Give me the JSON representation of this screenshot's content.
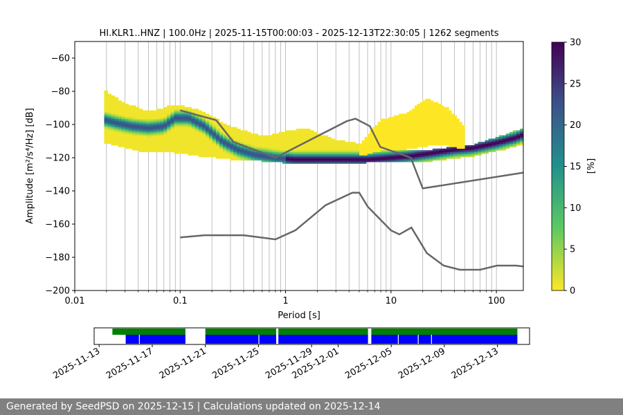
{
  "chart_data": {
    "type": "heatmap",
    "title": "HI.KLR1..HNZ | 100.0Hz | 2025-11-15T00:00:03 - 2025-12-13T22:30:05 | 1262 segments",
    "xlabel": "Period [s]",
    "ylabel": "Amplitude [m²/s⁴/Hz] [dB]",
    "x_scale": "log",
    "xlim": [
      0.01,
      180
    ],
    "ylim": [
      -200,
      -50
    ],
    "x_ticks": [
      {
        "value": 0.01,
        "label": "0.01"
      },
      {
        "value": 0.1,
        "label": "0.1"
      },
      {
        "value": 1,
        "label": "1"
      },
      {
        "value": 10,
        "label": "10"
      },
      {
        "value": 100,
        "label": "100"
      }
    ],
    "y_ticks": [
      {
        "value": -60,
        "label": "−60"
      },
      {
        "value": -80,
        "label": "−80"
      },
      {
        "value": -100,
        "label": "−100"
      },
      {
        "value": -120,
        "label": "−120"
      },
      {
        "value": -140,
        "label": "−140"
      },
      {
        "value": -160,
        "label": "−160"
      },
      {
        "value": -180,
        "label": "−180"
      },
      {
        "value": -200,
        "label": "−200"
      }
    ],
    "grid": "vertical",
    "colorbar": {
      "label": "[%]",
      "range": [
        0,
        30
      ],
      "ticks": [
        {
          "value": 0,
          "label": "0"
        },
        {
          "value": 5,
          "label": "5"
        },
        {
          "value": 10,
          "label": "10"
        },
        {
          "value": 15,
          "label": "15"
        },
        {
          "value": 20,
          "label": "20"
        },
        {
          "value": 25,
          "label": "25"
        },
        {
          "value": 30,
          "label": "30"
        }
      ],
      "colors": [
        "#fde725",
        "#5ec962",
        "#21918c",
        "#3b528b",
        "#440154"
      ]
    },
    "psd_mode": {
      "period": [
        0.019,
        0.025,
        0.035,
        0.05,
        0.07,
        0.09,
        0.12,
        0.17,
        0.25,
        0.35,
        0.5,
        0.8,
        1.2,
        2,
        4,
        6,
        10,
        15,
        25,
        40,
        60,
        100,
        150,
        180
      ],
      "db": [
        -97,
        -99,
        -101,
        -102,
        -101,
        -96,
        -96,
        -101,
        -110,
        -115,
        -118,
        -120,
        -121,
        -121,
        -121,
        -121,
        -120,
        -119,
        -117,
        -115,
        -114,
        -111,
        -108,
        -106
      ]
    },
    "psd_spread": [
      {
        "period": 0.019,
        "upper": -80,
        "lower": -110
      },
      {
        "period": 0.03,
        "upper": -88,
        "lower": -113
      },
      {
        "period": 0.05,
        "upper": -93,
        "lower": -116
      },
      {
        "period": 0.09,
        "upper": -89,
        "lower": -116
      },
      {
        "period": 0.15,
        "upper": -92,
        "lower": -118
      },
      {
        "period": 0.3,
        "upper": -102,
        "lower": -120
      },
      {
        "period": 0.6,
        "upper": -108,
        "lower": -121
      },
      {
        "period": 1.5,
        "upper": -103,
        "lower": -123
      },
      {
        "period": 3,
        "upper": -110,
        "lower": -123
      },
      {
        "period": 6,
        "upper": -113,
        "lower": -122
      },
      {
        "period": 12,
        "upper": -116,
        "lower": -122
      },
      {
        "period": 25,
        "upper": -116,
        "lower": -121
      },
      {
        "period": 60,
        "upper": -113,
        "lower": -118
      },
      {
        "period": 120,
        "upper": -107,
        "lower": -114
      },
      {
        "period": 180,
        "upper": -103,
        "lower": -111
      }
    ],
    "upper_noise_model": {
      "period": [
        0.1,
        0.22,
        0.32,
        0.8,
        3.8,
        4.6,
        6.3,
        7.9,
        15.4,
        20,
        180
      ],
      "db": [
        -91.5,
        -97.4,
        -110.5,
        -120,
        -98,
        -96.5,
        -101,
        -113.5,
        -120,
        -138.5,
        -129
      ]
    },
    "lower_noise_model": {
      "period": [
        0.1,
        0.17,
        0.4,
        0.8,
        1.24,
        2.4,
        4.3,
        5,
        6,
        10,
        12,
        15.6,
        21.9,
        31.6,
        45,
        70,
        101,
        154,
        180
      ],
      "db": [
        -168,
        -166.7,
        -166.7,
        -169.2,
        -163.7,
        -148.6,
        -141.1,
        -141.1,
        -149.4,
        -163.8,
        -166.2,
        -162.1,
        -177.5,
        -185,
        -187.5,
        -187.5,
        -185,
        -185,
        -185.5
      ]
    },
    "high_amplitude_blob": [
      {
        "period": 5,
        "upper": -113,
        "lower": -118
      },
      {
        "period": 8,
        "upper": -98,
        "lower": -115
      },
      {
        "period": 14,
        "upper": -94,
        "lower": -114
      },
      {
        "period": 22,
        "upper": -85,
        "lower": -112
      },
      {
        "period": 35,
        "upper": -91,
        "lower": -112
      },
      {
        "period": 50,
        "upper": -102,
        "lower": -114
      }
    ],
    "timeline": {
      "date_ticks": [
        "2025-11-13",
        "2025-11-17",
        "2025-11-21",
        "2025-11-25",
        "2025-11-29",
        "2025-12-01",
        "2025-12-05",
        "2025-12-09",
        "2025-12-13"
      ],
      "date_range": [
        "2025-11-12T15:00",
        "2025-12-15T10:00"
      ],
      "green_spans": [
        [
          "2025-11-14T00:00",
          "2025-11-19T12:00"
        ],
        [
          "2025-11-21T00:00",
          "2025-11-26T08:00"
        ],
        [
          "2025-11-26T12:00",
          "2025-12-03T06:00"
        ],
        [
          "2025-12-03T12:00",
          "2025-12-14T12:00"
        ]
      ],
      "blue_spans": [
        [
          "2025-11-15T00:00",
          "2025-11-19T12:00"
        ],
        [
          "2025-11-21T00:00",
          "2025-11-26T08:00"
        ],
        [
          "2025-11-26T12:00",
          "2025-12-03T06:00"
        ],
        [
          "2025-12-03T12:00",
          "2025-12-14T12:00"
        ]
      ],
      "blue_gaps": [
        "2025-11-16T00:00",
        "2025-11-25T00:00",
        "2025-12-05T12:00",
        "2025-12-07T00:00",
        "2025-12-08T00:00"
      ]
    }
  },
  "footer_text": "Generated by SeedPSD on 2025-12-15 | Calculations updated on 2025-12-14"
}
